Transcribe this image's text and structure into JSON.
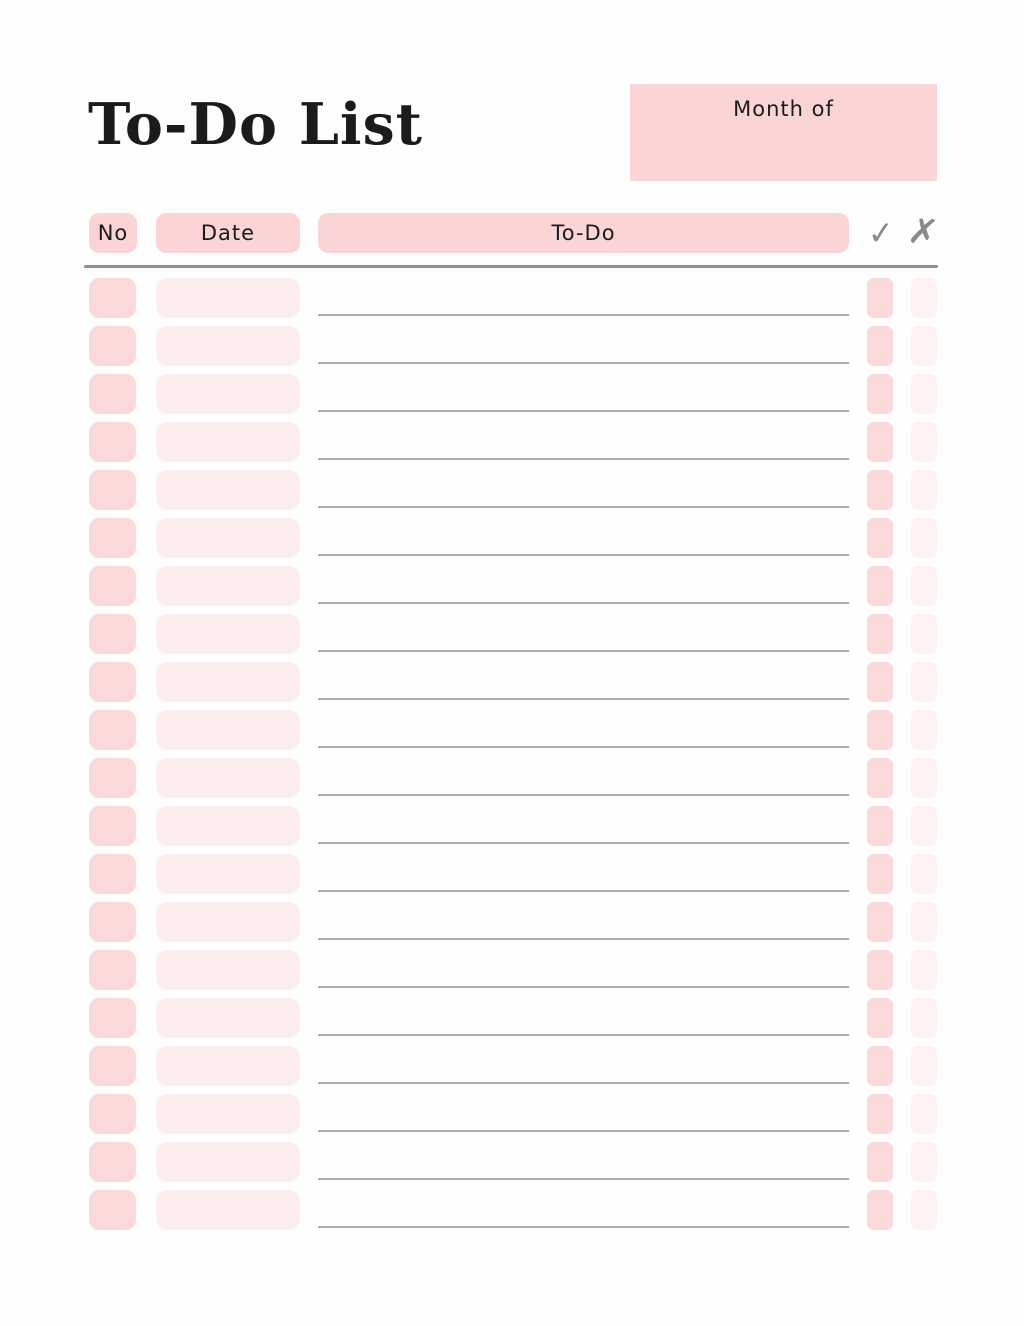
{
  "page": {
    "title": "To-Do List",
    "month": {
      "label": "Month of",
      "value": ""
    }
  },
  "table": {
    "headers": {
      "no": "No",
      "date": "Date",
      "todo": "To-Do"
    },
    "header_icons": {
      "check": "✓",
      "x": "✗"
    },
    "rows": [
      {
        "no": "",
        "date": "",
        "todo": "",
        "done": "",
        "missed": ""
      },
      {
        "no": "",
        "date": "",
        "todo": "",
        "done": "",
        "missed": ""
      },
      {
        "no": "",
        "date": "",
        "todo": "",
        "done": "",
        "missed": ""
      },
      {
        "no": "",
        "date": "",
        "todo": "",
        "done": "",
        "missed": ""
      },
      {
        "no": "",
        "date": "",
        "todo": "",
        "done": "",
        "missed": ""
      },
      {
        "no": "",
        "date": "",
        "todo": "",
        "done": "",
        "missed": ""
      },
      {
        "no": "",
        "date": "",
        "todo": "",
        "done": "",
        "missed": ""
      },
      {
        "no": "",
        "date": "",
        "todo": "",
        "done": "",
        "missed": ""
      },
      {
        "no": "",
        "date": "",
        "todo": "",
        "done": "",
        "missed": ""
      },
      {
        "no": "",
        "date": "",
        "todo": "",
        "done": "",
        "missed": ""
      },
      {
        "no": "",
        "date": "",
        "todo": "",
        "done": "",
        "missed": ""
      },
      {
        "no": "",
        "date": "",
        "todo": "",
        "done": "",
        "missed": ""
      },
      {
        "no": "",
        "date": "",
        "todo": "",
        "done": "",
        "missed": ""
      },
      {
        "no": "",
        "date": "",
        "todo": "",
        "done": "",
        "missed": ""
      },
      {
        "no": "",
        "date": "",
        "todo": "",
        "done": "",
        "missed": ""
      },
      {
        "no": "",
        "date": "",
        "todo": "",
        "done": "",
        "missed": ""
      },
      {
        "no": "",
        "date": "",
        "todo": "",
        "done": "",
        "missed": ""
      },
      {
        "no": "",
        "date": "",
        "todo": "",
        "done": "",
        "missed": ""
      },
      {
        "no": "",
        "date": "",
        "todo": "",
        "done": "",
        "missed": ""
      },
      {
        "no": "",
        "date": "",
        "todo": "",
        "done": "",
        "missed": ""
      }
    ]
  },
  "colors": {
    "page_bg": "#fffefe",
    "pink_strong": "#fbd5d5",
    "pink_cell": "#fbd9d9",
    "pink_light": "#fdeded",
    "pink_lighter": "#fdf1f1",
    "line_gray": "#ababab",
    "divider_gray": "#8f8f8f",
    "icon_gray": "#8a8a8a",
    "text_color": "#1b1b1b"
  }
}
